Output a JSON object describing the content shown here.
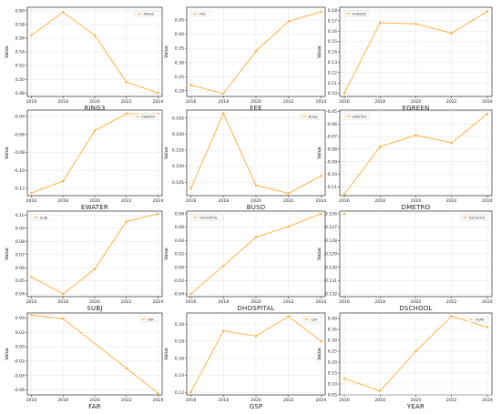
{
  "colors": {
    "series": "#ffaa33",
    "axis": "#000000",
    "grid": "#e3e3e3"
  },
  "chart_data": [
    {
      "type": "line",
      "x": [
        2016,
        2018,
        2020,
        2022,
        2024
      ],
      "series": [
        {
          "name": "RING3",
          "values": [
            0.564,
            0.598,
            0.564,
            0.496,
            0.48
          ]
        }
      ],
      "xlabel": "RING3",
      "ylabel": "Value",
      "xticks": [
        "2016",
        "2018",
        "2020",
        "2022",
        "2024"
      ],
      "yticks": [
        "0.48",
        "0.50",
        "0.52",
        "0.54",
        "0.56",
        "0.58",
        "0.60"
      ],
      "ylim": [
        0.475,
        0.605
      ],
      "grid": true,
      "legend": "upper right"
    },
    {
      "type": "line",
      "x": [
        2016,
        2018,
        2020,
        2022,
        2024
      ],
      "series": [
        {
          "name": "FEE",
          "values": [
            0.22,
            0.19,
            0.34,
            0.445,
            0.48
          ]
        }
      ],
      "xlabel": "FEE",
      "ylabel": "Value",
      "xticks": [
        "2016",
        "2018",
        "2020",
        "2022",
        "2024"
      ],
      "yticks": [
        "0.20",
        "0.25",
        "0.30",
        "0.35",
        "0.40",
        "0.45"
      ],
      "ylim": [
        0.18,
        0.495
      ],
      "grid": true,
      "legend": "upper left"
    },
    {
      "type": "line",
      "x": [
        2016,
        2018,
        2020,
        2022,
        2024
      ],
      "series": [
        {
          "name": "EGREEN",
          "values": [
            0.1,
            0.168,
            0.167,
            0.158,
            0.179
          ]
        }
      ],
      "xlabel": "EGREEN",
      "ylabel": "Value",
      "xticks": [
        "2016",
        "2018",
        "2020",
        "2022",
        "2024"
      ],
      "yticks": [
        "0.10",
        "0.11",
        "0.12",
        "0.13",
        "0.14",
        "0.15",
        "0.16",
        "0.17",
        "0.18"
      ],
      "ylim": [
        0.097,
        0.183
      ],
      "grid": true,
      "legend": "upper left"
    },
    {
      "type": "line",
      "x": [
        2016,
        2018,
        2020,
        2022,
        2024
      ],
      "series": [
        {
          "name": "EWATER",
          "values": [
            -0.125,
            -0.112,
            -0.056,
            -0.037,
            -0.037
          ]
        }
      ],
      "xlabel": "EWATER",
      "ylabel": "Value",
      "xticks": [
        "2016",
        "2018",
        "2020",
        "2022",
        "2024"
      ],
      "yticks": [
        "-0.12",
        "-0.10",
        "-0.08",
        "-0.06",
        "-0.04"
      ],
      "ylim": [
        -0.128,
        -0.033
      ],
      "grid": true,
      "legend": "upper right"
    },
    {
      "type": "line",
      "x": [
        2016,
        2018,
        2020,
        2022,
        2024
      ],
      "series": [
        {
          "name": "BUSD",
          "values": [
            0.143,
            0.1665,
            0.144,
            0.1415,
            0.147
          ]
        }
      ],
      "xlabel": "BUSD",
      "ylabel": "Value",
      "xticks": [
        "2016",
        "2018",
        "2020",
        "2022",
        "2024"
      ],
      "yticks": [
        "0.145",
        "0.150",
        "0.155",
        "0.160",
        "0.165"
      ],
      "ylim": [
        0.1408,
        0.1675
      ],
      "grid": true,
      "legend": "upper right"
    },
    {
      "type": "line",
      "x": [
        2016,
        2018,
        2020,
        2022,
        2024
      ],
      "series": [
        {
          "name": "DMETRO",
          "values": [
            -0.116,
            -0.078,
            -0.069,
            -0.075,
            -0.052
          ]
        }
      ],
      "xlabel": "DMETRO",
      "ylabel": "Value",
      "xticks": [
        "2016",
        "2018",
        "2020",
        "2022",
        "2024"
      ],
      "yticks": [
        "-0.11",
        "-0.10",
        "-0.09",
        "-0.08",
        "-0.07",
        "-0.06",
        "-0.05"
      ],
      "ylim": [
        -0.117,
        -0.049
      ],
      "grid": true,
      "legend": "upper left"
    },
    {
      "type": "line",
      "x": [
        2016,
        2018,
        2020,
        2022,
        2024
      ],
      "series": [
        {
          "name": "SUBJ",
          "values": [
            0.053,
            0.04,
            0.059,
            0.095,
            0.101
          ]
        }
      ],
      "xlabel": "SUBJ",
      "ylabel": "Value",
      "xticks": [
        "2016",
        "2018",
        "2020",
        "2022",
        "2024"
      ],
      "yticks": [
        "0.04",
        "0.05",
        "0.06",
        "0.07",
        "0.08",
        "0.09",
        "0.10"
      ],
      "ylim": [
        0.038,
        0.103
      ],
      "grid": true,
      "legend": "upper left"
    },
    {
      "type": "line",
      "x": [
        2016,
        2018,
        2020,
        2022,
        2024
      ],
      "series": [
        {
          "name": "DHOSPITAL",
          "values": [
            -0.04,
            0.002,
            0.045,
            0.061,
            0.08
          ]
        }
      ],
      "xlabel": "DHOSPITAL",
      "ylabel": "Value",
      "xticks": [
        "2016",
        "2018",
        "2020",
        "2022",
        "2024"
      ],
      "yticks": [
        "-0.04",
        "-0.02",
        "0.00",
        "0.02",
        "0.04",
        "0.06",
        "0.08"
      ],
      "ylim": [
        -0.044,
        0.084
      ],
      "grid": true,
      "legend": "upper left"
    },
    {
      "type": "line",
      "x": [
        2016,
        2018,
        2020,
        2022,
        2024
      ],
      "series": [
        {
          "name": "DSCHOOL",
          "values": [
            -0.126,
            null,
            null,
            null,
            null
          ]
        }
      ],
      "xlabel": "DSCHOOL",
      "ylabel": "Value",
      "xticks": [
        "2016",
        "2018",
        "2020",
        "2022",
        "2024"
      ],
      "yticks": [
        "-0.126",
        "-0.127",
        "-0.128",
        "-0.129",
        "-0.130",
        "-0.131",
        "-0.132"
      ],
      "ylim": [
        -0.1322,
        -0.1258
      ],
      "grid": true,
      "legend": "upper right"
    },
    {
      "type": "line",
      "x": [
        2016,
        2018,
        2020,
        2022,
        2024
      ],
      "series": [
        {
          "name": "FAR",
          "values": [
            0.044,
            0.039,
            null,
            -0.03,
            -0.065
          ]
        }
      ],
      "xlabel": "FAR",
      "ylabel": "Value",
      "xticks": [
        "2016",
        "2018",
        "2020",
        "2022",
        "2024"
      ],
      "yticks": [
        "-0.06",
        "-0.04",
        "-0.02",
        "0.00",
        "0.02",
        "0.04"
      ],
      "ylim": [
        -0.067,
        0.047
      ],
      "grid": true,
      "legend": "upper right"
    },
    {
      "type": "line",
      "x": [
        2016,
        2018,
        2020,
        2022,
        2024
      ],
      "series": [
        {
          "name": "GSP",
          "values": [
            0.12,
            0.192,
            0.186,
            0.209,
            0.18
          ]
        }
      ],
      "xlabel": "GSP",
      "ylabel": "Value",
      "xticks": [
        "2016",
        "2018",
        "2020",
        "2022",
        "2024"
      ],
      "yticks": [
        "0.12",
        "0.14",
        "0.16",
        "0.18",
        "0.20"
      ],
      "ylim": [
        0.117,
        0.213
      ],
      "grid": true,
      "legend": "upper right"
    },
    {
      "type": "line",
      "x": [
        2016,
        2018,
        2020,
        2022,
        2024
      ],
      "series": [
        {
          "name": "YEAR",
          "values": [
            0.125,
            0.068,
            0.25,
            0.41,
            0.36
          ]
        }
      ],
      "xlabel": "YEAR",
      "ylabel": "Value",
      "xticks": [
        "2016",
        "2018",
        "2020",
        "2022",
        "2024"
      ],
      "yticks": [
        "0.05",
        "0.10",
        "0.15",
        "0.20",
        "0.25",
        "0.30",
        "0.35",
        "0.40"
      ],
      "ylim": [
        0.05,
        0.425
      ],
      "grid": true,
      "legend": "upper right"
    }
  ]
}
